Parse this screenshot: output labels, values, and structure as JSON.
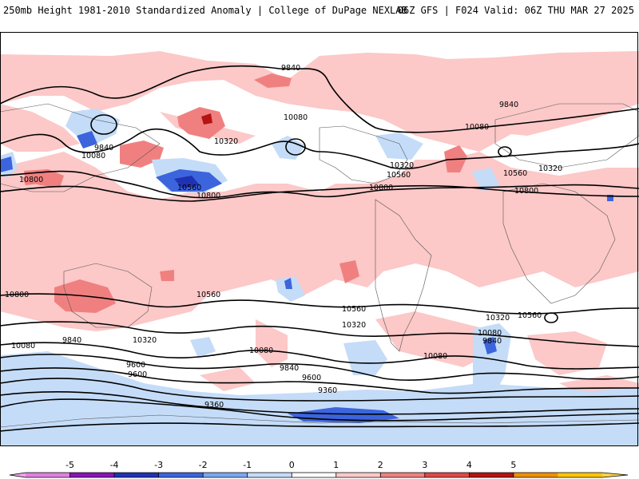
{
  "header": {
    "left": "250mb Height 1981-2010 Standardized Anomaly | College of DuPage NEXLAB",
    "right": "06Z GFS | F024 Valid: 06Z THU MAR 27 2025"
  },
  "map": {
    "projection": "cylindrical equidistant (global)",
    "contour_labels": [
      "9840",
      "9840",
      "9840",
      "10080",
      "10080",
      "10080",
      "10320",
      "10320",
      "10320",
      "10560",
      "10560",
      "10560",
      "10800",
      "10800",
      "10800",
      "10800",
      "10800",
      "10560",
      "10560",
      "10560",
      "10320",
      "10320",
      "10320",
      "10080",
      "10080",
      "10080",
      "9840",
      "9840",
      "9600",
      "9600",
      "9600",
      "9360",
      "9360",
      "10080",
      "9840"
    ]
  },
  "colorbar": {
    "tick_labels": [
      "-5",
      "-4",
      "-3",
      "-2",
      "-1",
      "0",
      "1",
      "2",
      "3",
      "4",
      "5"
    ],
    "colors": [
      "#e080e0",
      "#8a14b4",
      "#2032b4",
      "#3c64dc",
      "#7ea6f0",
      "#c4dcf8",
      "#ffffff",
      "#fcc8c8",
      "#f08080",
      "#e04848",
      "#b41414",
      "#f09000",
      "#ffc400"
    ]
  }
}
